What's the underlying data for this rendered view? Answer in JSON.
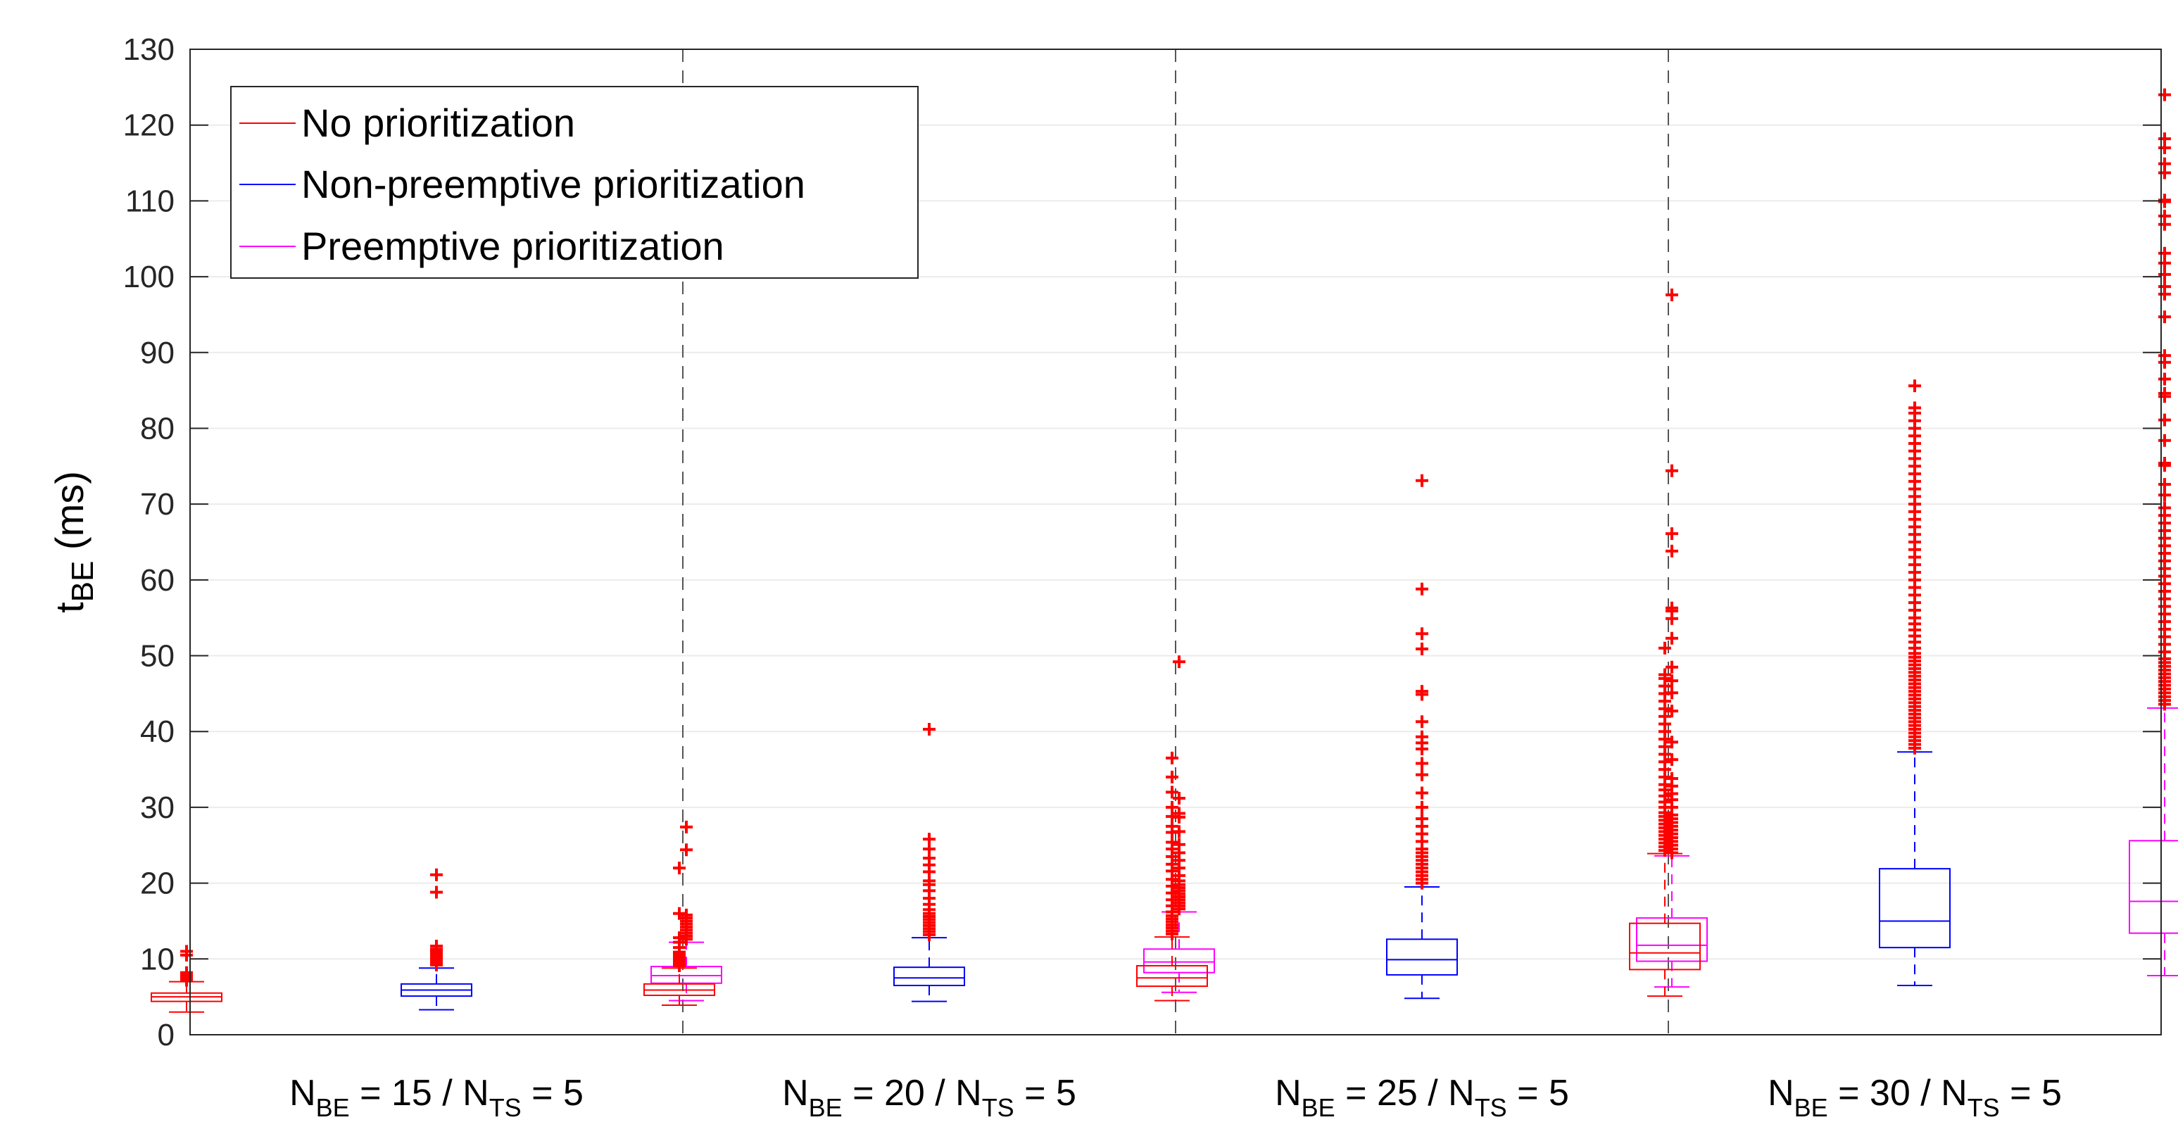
{
  "chart_data": {
    "type": "box",
    "ylabel_main": "t",
    "ylabel_sub": "BE",
    "ylabel_unit": " (ms)",
    "ylim": [
      0,
      130
    ],
    "yticks": [
      0,
      10,
      20,
      30,
      40,
      50,
      60,
      70,
      80,
      90,
      100,
      110,
      120,
      130
    ],
    "grid": "horizontal",
    "legend_position": "top-left",
    "series": [
      {
        "name": "No prioritization",
        "color": "#ff0000"
      },
      {
        "name": "Non-preemptive prioritization",
        "color": "#0000ff"
      },
      {
        "name": "Preemptive prioritization",
        "color": "#ff00ff"
      }
    ],
    "groups": [
      {
        "label": {
          "n": "N",
          "be": "BE",
          "mid": " = 15 / N",
          "ts": "TS",
          "end": " = 5"
        },
        "boxes": [
          {
            "series": 0,
            "whisker_low": 3.0,
            "q1": 4.4,
            "median": 5.0,
            "q3": 5.5,
            "whisker_high": 7.0,
            "outliers": [
              7.2,
              7.4,
              7.6,
              7.8,
              8.0,
              8.2,
              10.5,
              11.0
            ]
          },
          {
            "series": 1,
            "whisker_low": 3.3,
            "q1": 5.1,
            "median": 5.9,
            "q3": 6.7,
            "whisker_high": 8.8,
            "outliers": [
              9.2,
              9.5,
              9.8,
              10.1,
              10.4,
              10.7,
              11.0,
              11.3,
              11.7,
              18.8,
              21.1
            ]
          },
          {
            "series": 2,
            "whisker_low": 4.5,
            "q1": 6.8,
            "median": 7.8,
            "q3": 9.0,
            "whisker_high": 12.2,
            "outliers": [
              12.6,
              13.0,
              13.4,
              13.8,
              14.2,
              14.6,
              15.0,
              15.4,
              15.8,
              24.4,
              27.4
            ]
          }
        ]
      },
      {
        "label": {
          "n": "N",
          "be": "BE",
          "mid": " = 20 / N",
          "ts": "TS",
          "end": " = 5"
        },
        "boxes": [
          {
            "series": 0,
            "whisker_low": 3.9,
            "q1": 5.2,
            "median": 5.9,
            "q3": 6.7,
            "whisker_high": 8.8,
            "outliers": [
              9.1,
              9.4,
              9.7,
              10.0,
              10.3,
              10.6,
              10.9,
              11.5,
              12.2,
              12.8,
              16.0,
              22.0
            ]
          },
          {
            "series": 1,
            "whisker_low": 4.4,
            "q1": 6.5,
            "median": 7.5,
            "q3": 8.9,
            "whisker_high": 12.8,
            "outliers": [
              13.2,
              13.6,
              14.0,
              14.4,
              14.8,
              15.2,
              15.6,
              16.0,
              16.5,
              17.2,
              18.0,
              19.0,
              19.8,
              20.3,
              21.5,
              22.4,
              23.3,
              24.5,
              25.8,
              40.3
            ]
          },
          {
            "series": 2,
            "whisker_low": 5.6,
            "q1": 8.2,
            "median": 9.6,
            "q3": 11.3,
            "whisker_high": 16.2,
            "outliers": [
              16.6,
              17.0,
              17.4,
              17.8,
              18.2,
              18.6,
              19.0,
              19.4,
              19.8,
              20.3,
              21.0,
              22.0,
              23.0,
              24.0,
              25.1,
              26.8,
              28.7,
              29.2,
              31.2,
              49.2
            ]
          }
        ]
      },
      {
        "label": {
          "n": "N",
          "be": "BE",
          "mid": " = 25 / N",
          "ts": "TS",
          "end": " = 5"
        },
        "boxes": [
          {
            "series": 0,
            "whisker_low": 4.5,
            "q1": 6.4,
            "median": 7.5,
            "q3": 9.1,
            "whisker_high": 12.9,
            "outliers": [
              13.3,
              13.7,
              14.1,
              14.5,
              14.9,
              15.3,
              15.7,
              16.2,
              17.0,
              17.8,
              18.7,
              19.6,
              20.5,
              21.6,
              22.5,
              23.5,
              24.5,
              25.4,
              26.7,
              27.5,
              28.8,
              30.0,
              32.0,
              34.0,
              36.5
            ]
          },
          {
            "series": 1,
            "whisker_low": 4.8,
            "q1": 7.9,
            "median": 9.9,
            "q3": 12.6,
            "whisker_high": 19.5,
            "outliers": [
              20.0,
              20.5,
              21.0,
              21.5,
              22.0,
              22.5,
              23.0,
              23.5,
              24.0,
              24.5,
              25.5,
              26.5,
              27.5,
              28.5,
              30.0,
              31.9,
              34.3,
              35.8,
              37.7,
              38.5,
              39.3,
              41.3,
              44.9,
              45.3,
              50.9,
              52.9,
              58.8,
              73.1
            ]
          },
          {
            "series": 2,
            "whisker_low": 6.3,
            "q1": 9.7,
            "median": 11.8,
            "q3": 15.4,
            "whisker_high": 23.6,
            "outliers": [
              24.0,
              24.5,
              25.0,
              25.5,
              26.0,
              26.5,
              27.0,
              27.5,
              28.0,
              28.5,
              29.0,
              30.0,
              31.0,
              31.8,
              32.8,
              33.8,
              36.3,
              38.6,
              42.7,
              45.1,
              46.7,
              48.5,
              52.3,
              54.9,
              55.9,
              56.3,
              63.8,
              66.1,
              74.4,
              97.6
            ]
          }
        ]
      },
      {
        "label": {
          "n": "N",
          "be": "BE",
          "mid": " = 30 / N",
          "ts": "TS",
          "end": " = 5"
        },
        "boxes": [
          {
            "series": 0,
            "whisker_low": 5.1,
            "q1": 8.6,
            "median": 10.8,
            "q3": 14.7,
            "whisker_high": 23.9,
            "outliers": [
              24.3,
              24.8,
              25.3,
              25.8,
              26.3,
              26.8,
              27.3,
              27.8,
              28.3,
              28.8,
              29.3,
              30.0,
              30.7,
              31.5,
              32.3,
              33.0,
              34.0,
              35.0,
              36.0,
              37.0,
              38.0,
              39.0,
              40.0,
              41.0,
              42.0,
              43.0,
              44.0,
              45.0,
              46.0,
              47.0,
              47.5,
              51.0
            ]
          },
          {
            "series": 1,
            "whisker_low": 6.5,
            "q1": 11.5,
            "median": 15.0,
            "q3": 21.9,
            "whisker_high": 37.3,
            "outliers": [
              37.8,
              38.3,
              38.8,
              39.3,
              39.8,
              40.3,
              40.8,
              41.3,
              41.8,
              42.3,
              42.8,
              43.3,
              43.8,
              44.3,
              44.8,
              45.3,
              45.8,
              46.3,
              46.8,
              47.3,
              47.8,
              48.3,
              48.8,
              49.3,
              49.8,
              50.3,
              51.0,
              51.8,
              52.6,
              53.4,
              54.2,
              55.0,
              56.0,
              57.0,
              58.0,
              59.0,
              60.0,
              61.0,
              62.0,
              63.0,
              64.0,
              65.0,
              66.0,
              67.0,
              68.0,
              69.0,
              70.0,
              71.0,
              72.0,
              73.0,
              74.0,
              75.0,
              76.0,
              77.0,
              78.0,
              79.0,
              80.0,
              81.0,
              82.0,
              82.7,
              85.6
            ]
          },
          {
            "series": 2,
            "whisker_low": 7.8,
            "q1": 13.4,
            "median": 17.6,
            "q3": 25.6,
            "whisker_high": 43.1,
            "outliers": [
              43.6,
              44.1,
              44.6,
              45.1,
              45.6,
              46.1,
              46.6,
              47.1,
              47.6,
              48.1,
              48.6,
              49.1,
              49.6,
              50.5,
              51.5,
              52.5,
              53.5,
              54.5,
              55.5,
              56.5,
              57.5,
              58.5,
              59.5,
              60.5,
              61.5,
              62.5,
              63.5,
              64.5,
              65.5,
              66.5,
              67.5,
              68.5,
              69.5,
              71.2,
              72.6,
              75.1,
              75.4,
              78.4,
              81.1,
              84.2,
              84.6,
              86.5,
              88.7,
              89.6,
              94.7,
              97.7,
              98.7,
              100.3,
              101.8,
              103.1,
              106.9,
              108.0,
              109.9,
              110.1,
              113.7,
              114.9,
              117.0,
              118.2,
              124.0
            ]
          }
        ]
      }
    ]
  }
}
